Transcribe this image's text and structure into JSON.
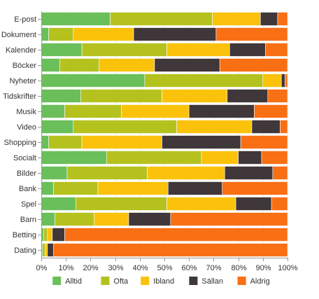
{
  "chart_data": {
    "type": "bar",
    "orientation": "horizontal",
    "stacked": true,
    "percent": true,
    "categories": [
      "E-post",
      "Dokument",
      "Kalender",
      "Böcker",
      "Nyheter",
      "Tidskrifter",
      "Musik",
      "Video",
      "Shopping",
      "Socialt",
      "Bilder",
      "Bank",
      "Spel",
      "Barn",
      "Betting",
      "Dating"
    ],
    "series": [
      {
        "name": "Alltid",
        "color": "#6abf5a",
        "values": [
          28,
          3,
          16.5,
          7.5,
          42,
          16,
          9.5,
          13,
          3,
          26.5,
          10.5,
          5,
          14,
          5.5,
          1,
          0.5
        ]
      },
      {
        "name": "Ofta",
        "color": "#b5c21e",
        "values": [
          41.5,
          10,
          34.5,
          16,
          48,
          33,
          23,
          42,
          13.5,
          38.5,
          32.5,
          18,
          37,
          16,
          1.5,
          1
        ]
      },
      {
        "name": "Ibland",
        "color": "#fbc20c",
        "values": [
          19.5,
          24.5,
          25.5,
          22.5,
          7.5,
          26.5,
          27.5,
          30.5,
          32.5,
          15,
          31.5,
          28.5,
          28,
          14,
          2,
          1
        ]
      },
      {
        "name": "Sällan",
        "color": "#3f373a",
        "values": [
          7,
          33.5,
          14.5,
          26.5,
          1.5,
          16.5,
          26.5,
          11.5,
          32,
          9.5,
          19.5,
          22,
          14.5,
          17,
          5,
          2.5
        ]
      },
      {
        "name": "Aldrig",
        "color": "#f86f14",
        "values": [
          4,
          29,
          9,
          27.5,
          1,
          8,
          13.5,
          3,
          19,
          10.5,
          6,
          26.5,
          6.5,
          47.5,
          90.5,
          95
        ]
      }
    ],
    "x_ticks": [
      "0%",
      "10%",
      "20%",
      "30%",
      "40%",
      "50%",
      "60%",
      "70%",
      "80%",
      "90%",
      "100%"
    ],
    "xlim": [
      0,
      100
    ],
    "grid": true,
    "legend_position": "bottom"
  }
}
